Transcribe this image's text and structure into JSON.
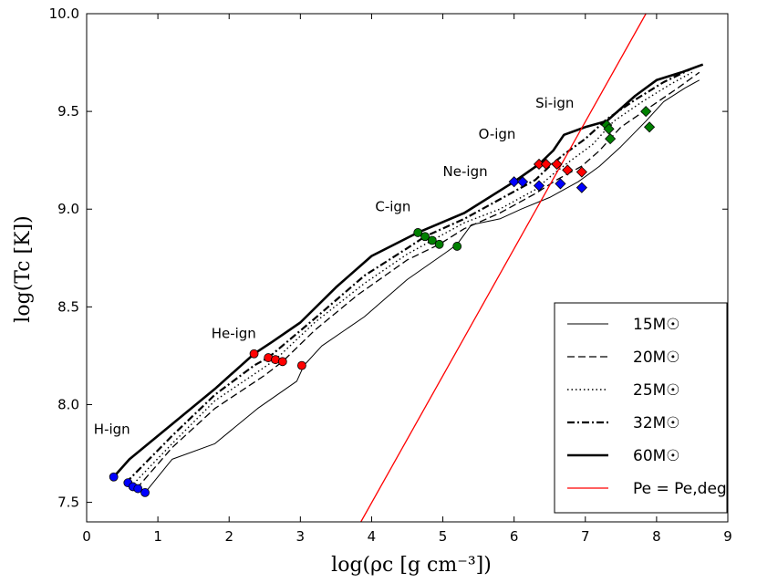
{
  "chart_data": {
    "type": "line",
    "xlabel": "log(ρc [g cm⁻³])",
    "ylabel": "log(Tc [K])",
    "xlim": [
      0,
      9
    ],
    "ylim": [
      7.4,
      10.0
    ],
    "xticks": [
      "0",
      "1",
      "2",
      "3",
      "4",
      "5",
      "6",
      "7",
      "8",
      "9"
    ],
    "yticks": [
      "7.5",
      "8.0",
      "8.5",
      "9.0",
      "9.5",
      "10.0"
    ],
    "grid": false,
    "legend_position": "bottom-right",
    "annotations": [
      {
        "text": "H-ign",
        "x": 0.1,
        "y": 7.85
      },
      {
        "text": "He-ign",
        "x": 1.75,
        "y": 8.34
      },
      {
        "text": "C-ign",
        "x": 4.05,
        "y": 8.99
      },
      {
        "text": "Ne-ign",
        "x": 5.0,
        "y": 9.17
      },
      {
        "text": "O-ign",
        "x": 5.5,
        "y": 9.36
      },
      {
        "text": "Si-ign",
        "x": 6.3,
        "y": 9.52
      }
    ],
    "series": [
      {
        "name": "15M☉",
        "style": "solid",
        "width": 1.0,
        "points": [
          [
            0.82,
            7.55
          ],
          [
            1.2,
            7.72
          ],
          [
            1.8,
            7.8
          ],
          [
            2.4,
            7.98
          ],
          [
            2.95,
            8.12
          ],
          [
            3.05,
            8.2
          ],
          [
            3.3,
            8.3
          ],
          [
            3.9,
            8.45
          ],
          [
            4.5,
            8.64
          ],
          [
            5.05,
            8.78
          ],
          [
            5.2,
            8.82
          ],
          [
            5.4,
            8.92
          ],
          [
            5.8,
            8.95
          ],
          [
            6.1,
            9.0
          ],
          [
            6.5,
            9.06
          ],
          [
            6.9,
            9.14
          ],
          [
            7.2,
            9.22
          ],
          [
            7.5,
            9.32
          ],
          [
            7.85,
            9.45
          ],
          [
            8.1,
            9.55
          ],
          [
            8.4,
            9.62
          ],
          [
            8.6,
            9.66
          ]
        ]
      },
      {
        "name": "20M☉",
        "style": "dashed",
        "width": 1.3,
        "points": [
          [
            0.7,
            7.57
          ],
          [
            1.2,
            7.78
          ],
          [
            1.8,
            7.98
          ],
          [
            2.5,
            8.15
          ],
          [
            2.75,
            8.22
          ],
          [
            3.2,
            8.38
          ],
          [
            3.8,
            8.56
          ],
          [
            4.5,
            8.74
          ],
          [
            4.95,
            8.82
          ],
          [
            5.3,
            8.9
          ],
          [
            5.8,
            8.98
          ],
          [
            6.3,
            9.08
          ],
          [
            6.6,
            9.15
          ],
          [
            6.95,
            9.22
          ],
          [
            7.2,
            9.3
          ],
          [
            7.5,
            9.42
          ],
          [
            7.9,
            9.52
          ],
          [
            8.3,
            9.62
          ],
          [
            8.6,
            9.7
          ]
        ]
      },
      {
        "name": "25M☉",
        "style": "dotted",
        "width": 1.4,
        "points": [
          [
            0.62,
            7.58
          ],
          [
            1.2,
            7.8
          ],
          [
            1.8,
            8.02
          ],
          [
            2.45,
            8.18
          ],
          [
            2.65,
            8.23
          ],
          [
            3.2,
            8.42
          ],
          [
            3.9,
            8.62
          ],
          [
            4.5,
            8.77
          ],
          [
            4.85,
            8.84
          ],
          [
            5.3,
            8.93
          ],
          [
            5.8,
            9.0
          ],
          [
            6.3,
            9.1
          ],
          [
            6.55,
            9.18
          ],
          [
            6.8,
            9.25
          ],
          [
            7.1,
            9.33
          ],
          [
            7.4,
            9.45
          ],
          [
            7.8,
            9.55
          ],
          [
            8.2,
            9.64
          ],
          [
            8.5,
            9.7
          ]
        ]
      },
      {
        "name": "32M☉",
        "style": "dashdot",
        "width": 2.2,
        "points": [
          [
            0.55,
            7.6
          ],
          [
            1.2,
            7.84
          ],
          [
            1.8,
            8.05
          ],
          [
            2.35,
            8.2
          ],
          [
            2.55,
            8.24
          ],
          [
            3.2,
            8.44
          ],
          [
            3.9,
            8.66
          ],
          [
            4.5,
            8.8
          ],
          [
            4.75,
            8.86
          ],
          [
            5.3,
            8.95
          ],
          [
            5.8,
            9.05
          ],
          [
            6.3,
            9.15
          ],
          [
            6.5,
            9.22
          ],
          [
            6.7,
            9.28
          ],
          [
            7.0,
            9.36
          ],
          [
            7.3,
            9.46
          ],
          [
            7.7,
            9.56
          ],
          [
            8.1,
            9.65
          ],
          [
            8.5,
            9.72
          ]
        ]
      },
      {
        "name": "60M☉",
        "style": "solid",
        "width": 2.6,
        "points": [
          [
            0.38,
            7.63
          ],
          [
            0.6,
            7.72
          ],
          [
            1.2,
            7.9
          ],
          [
            1.8,
            8.08
          ],
          [
            2.35,
            8.26
          ],
          [
            2.6,
            8.32
          ],
          [
            3.0,
            8.42
          ],
          [
            3.5,
            8.6
          ],
          [
            4.0,
            8.76
          ],
          [
            4.65,
            8.88
          ],
          [
            5.3,
            8.98
          ],
          [
            6.0,
            9.14
          ],
          [
            6.35,
            9.23
          ],
          [
            6.55,
            9.3
          ],
          [
            6.7,
            9.38
          ],
          [
            7.0,
            9.42
          ],
          [
            7.3,
            9.45
          ],
          [
            7.7,
            9.58
          ],
          [
            8.0,
            9.66
          ],
          [
            8.35,
            9.7
          ],
          [
            8.65,
            9.74
          ]
        ]
      },
      {
        "name": "Pe = Pe,deg",
        "style": "solid",
        "width": 1.3,
        "color": "#ff0000",
        "points": [
          [
            3.85,
            7.4
          ],
          [
            7.85,
            10.0
          ]
        ]
      }
    ],
    "markers": [
      {
        "x": 0.38,
        "y": 7.63,
        "shape": "circle",
        "color": "#0000ff"
      },
      {
        "x": 0.58,
        "y": 7.6,
        "shape": "circle",
        "color": "#0000ff"
      },
      {
        "x": 0.65,
        "y": 7.58,
        "shape": "circle",
        "color": "#0000ff"
      },
      {
        "x": 0.72,
        "y": 7.57,
        "shape": "circle",
        "color": "#0000ff"
      },
      {
        "x": 0.82,
        "y": 7.55,
        "shape": "circle",
        "color": "#0000ff"
      },
      {
        "x": 2.35,
        "y": 8.26,
        "shape": "circle",
        "color": "#ff0000"
      },
      {
        "x": 2.55,
        "y": 8.24,
        "shape": "circle",
        "color": "#ff0000"
      },
      {
        "x": 2.65,
        "y": 8.23,
        "shape": "circle",
        "color": "#ff0000"
      },
      {
        "x": 2.75,
        "y": 8.22,
        "shape": "circle",
        "color": "#ff0000"
      },
      {
        "x": 3.02,
        "y": 8.2,
        "shape": "circle",
        "color": "#ff0000"
      },
      {
        "x": 4.65,
        "y": 8.88,
        "shape": "circle",
        "color": "#008000"
      },
      {
        "x": 4.75,
        "y": 8.86,
        "shape": "circle",
        "color": "#008000"
      },
      {
        "x": 4.85,
        "y": 8.84,
        "shape": "circle",
        "color": "#008000"
      },
      {
        "x": 4.95,
        "y": 8.82,
        "shape": "circle",
        "color": "#008000"
      },
      {
        "x": 5.2,
        "y": 8.81,
        "shape": "circle",
        "color": "#008000"
      },
      {
        "x": 6.0,
        "y": 9.14,
        "shape": "diamond",
        "color": "#0000ff"
      },
      {
        "x": 6.12,
        "y": 9.14,
        "shape": "diamond",
        "color": "#0000ff"
      },
      {
        "x": 6.35,
        "y": 9.12,
        "shape": "diamond",
        "color": "#0000ff"
      },
      {
        "x": 6.65,
        "y": 9.13,
        "shape": "diamond",
        "color": "#0000ff"
      },
      {
        "x": 6.95,
        "y": 9.11,
        "shape": "diamond",
        "color": "#0000ff"
      },
      {
        "x": 6.35,
        "y": 9.23,
        "shape": "diamond",
        "color": "#ff0000"
      },
      {
        "x": 6.45,
        "y": 9.23,
        "shape": "diamond",
        "color": "#ff0000"
      },
      {
        "x": 6.6,
        "y": 9.23,
        "shape": "diamond",
        "color": "#ff0000"
      },
      {
        "x": 6.75,
        "y": 9.2,
        "shape": "diamond",
        "color": "#ff0000"
      },
      {
        "x": 6.95,
        "y": 9.19,
        "shape": "diamond",
        "color": "#ff0000"
      },
      {
        "x": 7.3,
        "y": 9.43,
        "shape": "diamond",
        "color": "#008000"
      },
      {
        "x": 7.33,
        "y": 9.41,
        "shape": "diamond",
        "color": "#008000"
      },
      {
        "x": 7.35,
        "y": 9.36,
        "shape": "diamond",
        "color": "#008000"
      },
      {
        "x": 7.85,
        "y": 9.5,
        "shape": "diamond",
        "color": "#008000"
      },
      {
        "x": 7.9,
        "y": 9.42,
        "shape": "diamond",
        "color": "#008000"
      }
    ]
  }
}
